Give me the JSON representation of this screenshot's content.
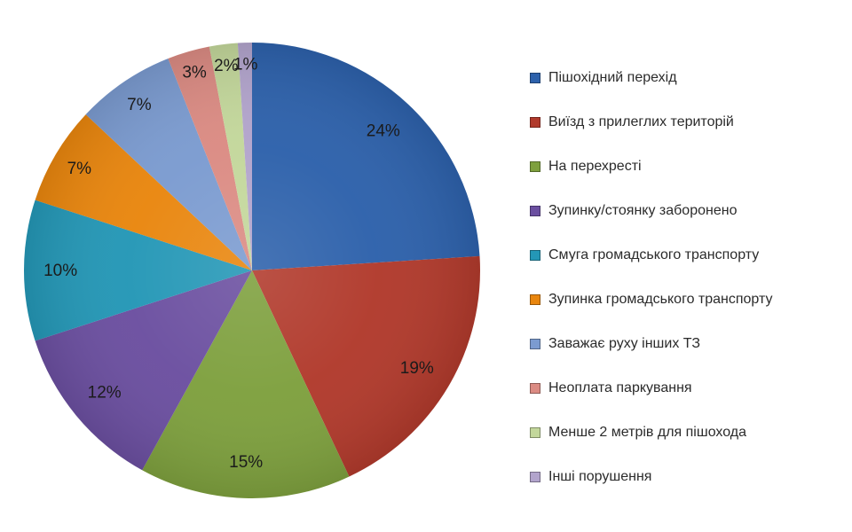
{
  "chart_data": {
    "type": "pie",
    "title": "",
    "unit": "%",
    "start_angle_deg": 0,
    "direction": "clockwise",
    "legend_position": "right",
    "data_labels": "percent-inside",
    "background": "#ffffff",
    "slices": [
      {
        "label": "Пішохідний перехід",
        "value": 24,
        "percent_label": "24%",
        "color": "#2d61ab"
      },
      {
        "label": "Виїзд з прилеглих територій",
        "value": 19,
        "percent_label": "19%",
        "color": "#b13a2c"
      },
      {
        "label": "На перехресті",
        "value": 15,
        "percent_label": "15%",
        "color": "#7ea03e"
      },
      {
        "label": "Зупинку/стоянку заборонено",
        "value": 12,
        "percent_label": "12%",
        "color": "#6b4fa0"
      },
      {
        "label": "Смуга громадського транспорту",
        "value": 10,
        "percent_label": "10%",
        "color": "#2497b6"
      },
      {
        "label": "Зупинка громадського транспорту",
        "value": 7,
        "percent_label": "7%",
        "color": "#e9860e"
      },
      {
        "label": "Заважає руху інших ТЗ",
        "value": 7,
        "percent_label": "7%",
        "color": "#7b9bd0"
      },
      {
        "label": "Неоплата паркування",
        "value": 3,
        "percent_label": "3%",
        "color": "#db8b83"
      },
      {
        "label": "Менше 2 метрів для пішохода",
        "value": 2,
        "percent_label": "2%",
        "color": "#c3d79b"
      },
      {
        "label": "Інші порушення",
        "value": 1,
        "percent_label": "1%",
        "color": "#b2a4cc"
      }
    ]
  }
}
